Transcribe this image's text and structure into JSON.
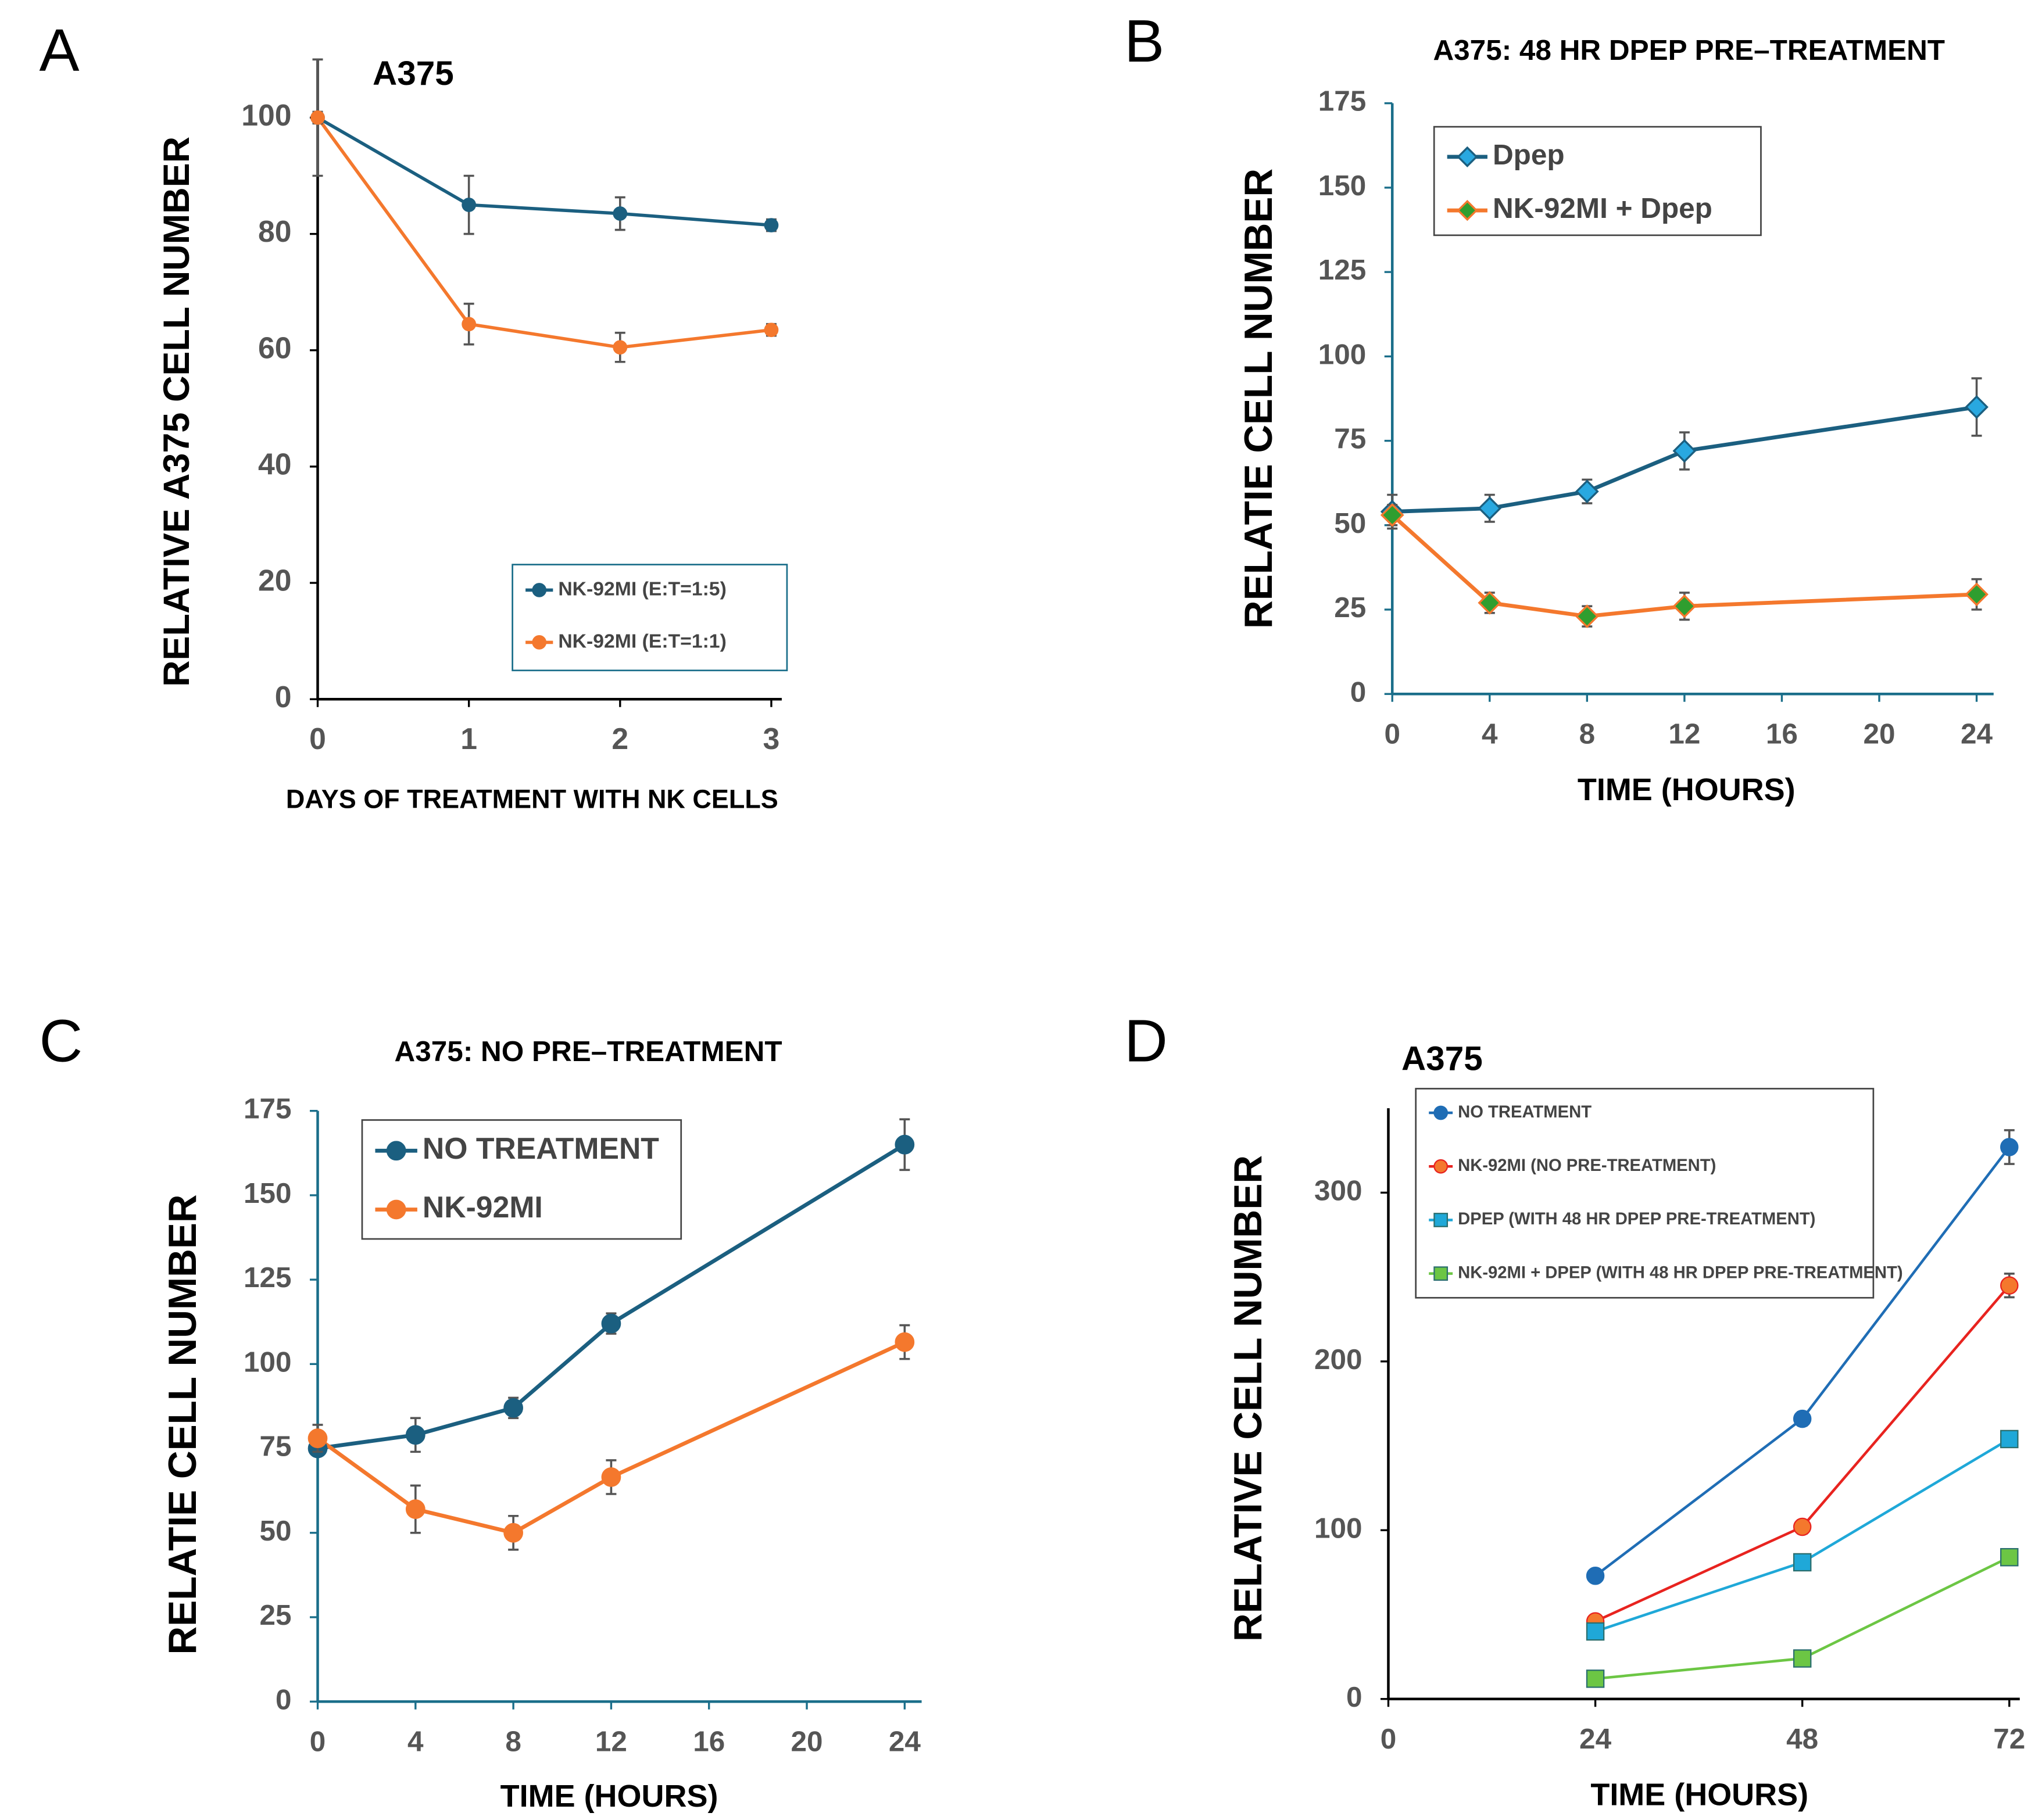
{
  "chart_data": [
    {
      "type": "line",
      "panel": "A",
      "title": "A375",
      "x_label": "DAYS OF TREATMENT WITH NK CELLS",
      "y_label": "RELATIVE A375 CELL NUMBER",
      "x": [
        0,
        1,
        2,
        3
      ],
      "xlim": [
        0,
        3
      ],
      "xticks": [
        0,
        1,
        2,
        3
      ],
      "ylim": [
        0,
        110
      ],
      "yticks": [
        0,
        20,
        40,
        60,
        80,
        100
      ],
      "legend": "lower right",
      "series": [
        {
          "name": "NK-92MI (E:T=1:5)",
          "color": "#1b5f80",
          "marker": "circle",
          "marker_color": "#1b5f80",
          "values": [
            100,
            85,
            83.5,
            81.5
          ],
          "errors": [
            10,
            5,
            2.8,
            1
          ]
        },
        {
          "name": "NK-92MI (E:T=1:1)",
          "color": "#f4782d",
          "marker": "circle",
          "marker_color": "#f4782d",
          "values": [
            100,
            64.5,
            60.5,
            63.5
          ],
          "errors": [
            1,
            3.5,
            2.5,
            1
          ]
        }
      ]
    },
    {
      "type": "line",
      "panel": "B",
      "title": "A375: 48 HR DPEP PRE–TREATMENT",
      "x_label": "TIME (HOURS)",
      "y_label": "RELATIE CELL NUMBER",
      "x": [
        0,
        4,
        8,
        12,
        24
      ],
      "xlim": [
        0,
        24
      ],
      "xticks": [
        0,
        4,
        8,
        12,
        16,
        20,
        24
      ],
      "ylim": [
        0,
        175
      ],
      "yticks": [
        0,
        25,
        50,
        75,
        100,
        125,
        150,
        175
      ],
      "legend": "upper left",
      "series": [
        {
          "name": "Dpep",
          "color": "#1b5f80",
          "marker": "diamond",
          "marker_color": "#29a8e0",
          "values": [
            54,
            55,
            60,
            72,
            85
          ],
          "errors": [
            5,
            4,
            3.5,
            5.5,
            8.5
          ]
        },
        {
          "name": "NK-92MI + Dpep",
          "color": "#f4782d",
          "marker": "diamond",
          "marker_color": "#2f9e2f",
          "values": [
            53,
            27,
            23,
            26,
            29.5
          ],
          "errors": [
            3,
            3,
            3,
            4,
            4.5
          ]
        }
      ]
    },
    {
      "type": "line",
      "panel": "C",
      "title": "A375: NO PRE–TREATMENT",
      "x_label": "TIME (HOURS)",
      "y_label": "RELATIE CELL NUMBER",
      "x": [
        0,
        4,
        8,
        12,
        24
      ],
      "xlim": [
        0,
        24
      ],
      "xticks": [
        0,
        4,
        8,
        12,
        16,
        20,
        24
      ],
      "ylim": [
        0,
        175
      ],
      "yticks": [
        0,
        25,
        50,
        75,
        100,
        125,
        150,
        175
      ],
      "legend": "upper left",
      "series": [
        {
          "name": "NO TREATMENT",
          "color": "#1b5f80",
          "marker": "circle",
          "marker_color": "#1b5f80",
          "values": [
            75,
            79,
            87,
            112,
            165
          ],
          "errors": [
            2,
            5,
            3,
            3,
            7.5
          ]
        },
        {
          "name": "NK-92MI",
          "color": "#f4782d",
          "marker": "circle",
          "marker_color": "#f4782d",
          "values": [
            78,
            57,
            50,
            66.5,
            106.5
          ],
          "errors": [
            4,
            7,
            5,
            5,
            5
          ]
        }
      ]
    },
    {
      "type": "line",
      "panel": "D",
      "title": "A375",
      "x_label": "TIME (HOURS)",
      "y_label": "RELATIVE CELL NUMBER",
      "x": [
        24,
        48,
        72
      ],
      "xlim": [
        0,
        72
      ],
      "xticks": [
        0,
        24,
        48,
        72
      ],
      "ylim": [
        0,
        350
      ],
      "yticks": [
        0,
        100,
        200,
        300
      ],
      "legend": "upper left",
      "series": [
        {
          "name": "NO TREATMENT",
          "color": "#1f6db5",
          "marker": "circle",
          "marker_color": "#1f6db5",
          "values": [
            73,
            166,
            327
          ],
          "errors": [
            2,
            4,
            10
          ]
        },
        {
          "name": "NK-92MI (NO PRE-TREATMENT)",
          "color": "#e8231f",
          "marker": "circle",
          "marker_color": "#f4782d",
          "values": [
            46,
            102,
            245
          ],
          "errors": [
            2,
            4,
            7
          ]
        },
        {
          "name": "DPEP (WITH 48 HR DPEP PRE-TREATMENT)",
          "color": "#1fa8d8",
          "marker": "square",
          "marker_color": "#1fa8d8",
          "values": [
            40,
            81,
            154
          ],
          "errors": [
            4,
            3,
            2
          ]
        },
        {
          "name": "NK-92MI + DPEP (WITH 48 HR DPEP PRE-TREATMENT)",
          "color": "#6cc644",
          "marker": "square",
          "marker_color": "#6cc644",
          "values": [
            12,
            24,
            84
          ],
          "errors": [
            1,
            1,
            2
          ]
        }
      ]
    }
  ]
}
